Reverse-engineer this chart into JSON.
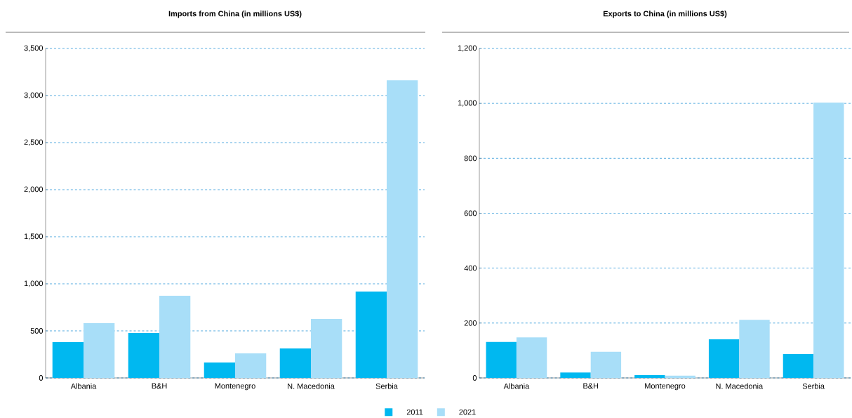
{
  "chart_data": [
    {
      "type": "bar",
      "title": "Imports from China (in millions US$)",
      "categories": [
        "Albania",
        "B&H",
        "Montenegro",
        "N. Macedonia",
        "Serbia"
      ],
      "series": [
        {
          "color": "#00b8f0",
          "values": [
            380,
            477,
            164,
            313,
            918
          ]
        },
        {
          "color": "#a8def8",
          "values": [
            582,
            873,
            261,
            627,
            3163
          ]
        }
      ],
      "ylim": [
        0,
        3500
      ],
      "yticks": [
        0,
        {
          "value": 500,
          "label": "500"
        },
        {
          "value": 1000,
          "label": "1,000"
        },
        {
          "value": 1500,
          "label": "1,500"
        },
        {
          "value": 2000,
          "label": "2,000"
        },
        {
          "value": 2500,
          "label": "2,500"
        },
        {
          "value": 3000,
          "label": "3,000"
        },
        {
          "value": 3500,
          "label": "3,500"
        }
      ],
      "grid": "y"
    },
    {
      "type": "bar",
      "title": "Exports to China (in millions US$)",
      "categories": [
        "Albania",
        "B&H",
        "Montenegro",
        "N. Macedonia",
        "Serbia"
      ],
      "series": [
        {
          "name": "2011",
          "color": "#00b8f0",
          "values": [
            131,
            20,
            10,
            141,
            87
          ]
        },
        {
          "name": "2021",
          "color": "#a8def8",
          "values": [
            148,
            95,
            8,
            212,
            1003
          ]
        }
      ],
      "ylim": [
        0,
        1200
      ],
      "yticks": [
        0,
        200,
        400,
        600,
        800,
        {
          "value": 1000,
          "label": "1,000"
        },
        {
          "value": 1200,
          "label": "1,200"
        }
      ],
      "grid": "y",
      "legend": "bottom"
    }
  ]
}
